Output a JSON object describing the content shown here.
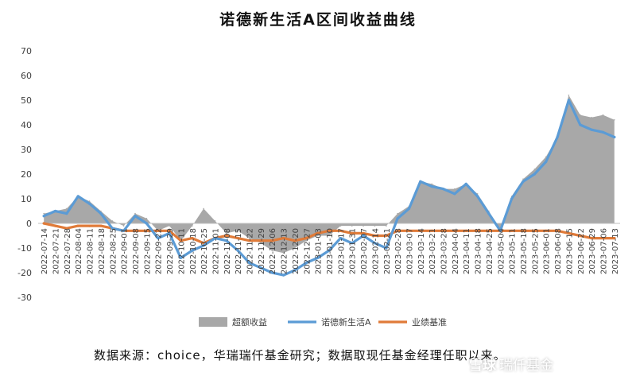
{
  "title": "诺德新生活A区间收益曲线",
  "source_note": "数据来源：choice，华瑞瑞仟基金研究；数据取现任基金经理任职以来。",
  "watermark": {
    "site": "雪球",
    "author": "瑞仟基金"
  },
  "colors": {
    "excess": "#a8a8a8",
    "fund": "#5b9bd5",
    "benchmark": "#e07b39",
    "axis": "#bfbfbf",
    "text": "#404040"
  },
  "chart_data": {
    "type": "area",
    "title": "诺德新生活A区间收益曲线",
    "xlabel": "",
    "ylabel": "",
    "ylim": [
      -30,
      70
    ],
    "yticks": [
      70,
      60,
      50,
      40,
      30,
      20,
      10,
      0,
      -10,
      -20,
      -30
    ],
    "grid": false,
    "legend_position": "bottom",
    "x": [
      "2022-07-14",
      "2022-07-21",
      "2022-07-28",
      "2022-08-04",
      "2022-08-11",
      "2022-08-18",
      "2022-08-25",
      "2022-09-01",
      "2022-09-08",
      "2022-09-15",
      "2022-09-22",
      "2022-09-29",
      "2022-10-13",
      "2022-10-20",
      "2022-10-27",
      "2022-11-03",
      "2022-11-10",
      "2022-11-17",
      "2022-11-24",
      "2022-12-01",
      "2022-12-08",
      "2022-12-15",
      "2022-12-22",
      "2022-12-29",
      "2023-01-05",
      "2023-01-12",
      "2023-01-19",
      "2023-02-02",
      "2023-02-09",
      "2023-02-16",
      "2023-02-23",
      "2023-03-02",
      "2023-03-09",
      "2023-03-16",
      "2023-03-23",
      "2023-03-30",
      "2023-04-06",
      "2023-04-13",
      "2023-04-20",
      "2023-04-27",
      "2023-05-04",
      "2023-05-11",
      "2023-05-18",
      "2023-05-25",
      "2023-06-01",
      "2023-06-08",
      "2023-06-15",
      "2023-06-22",
      "2023-06-29",
      "2023-07-06",
      "2023-07-13"
    ],
    "xticks": [
      "2022-07-14",
      "2022-07-21",
      "2022-07-28",
      "2022-08-04",
      "2022-08-11",
      "2022-08-18",
      "2022-08-25",
      "2022-09-01",
      "2022-09-08",
      "2022-09-15",
      "2022-09-22",
      "2022-09-29",
      "2022-10-11",
      "2022-10-18",
      "2022-10-25",
      "2022-11-01",
      "2022-11-08",
      "2022-11-15",
      "2022-11-22",
      "2022-11-29",
      "2022-12-06",
      "2022-12-13",
      "2022-12-20",
      "2022-12-27",
      "2023-01-03",
      "2023-01-10",
      "2023-01-17",
      "2023-01-31",
      "2023-02-07",
      "2023-02-14",
      "2023-02-21",
      "2023-02-28",
      "2023-03-07",
      "2023-03-14",
      "2023-03-21",
      "2023-03-28",
      "2023-04-04",
      "2023-04-11",
      "2023-04-18",
      "2023-04-25",
      "2023-05-04",
      "2023-05-11",
      "2023-05-18",
      "2023-05-25",
      "2023-06-01",
      "2023-06-08",
      "2023-06-15",
      "2023-06-22",
      "2023-06-29",
      "2023-07-06",
      "2023-07-13"
    ],
    "series": [
      {
        "name": "超额收益",
        "type": "area",
        "color": "#a8a8a8",
        "values": [
          4,
          5,
          6,
          11,
          9,
          5,
          1,
          -1,
          4,
          2,
          -3,
          -1,
          -7,
          -1,
          6,
          1,
          -4,
          -3,
          -6,
          -8,
          -11,
          -12,
          -10,
          -7,
          -5,
          -5,
          -1,
          -1,
          -1,
          -1,
          -1,
          4,
          7,
          17,
          16,
          14,
          14,
          16,
          12,
          5,
          -4,
          11,
          18,
          22,
          27,
          35,
          52,
          44,
          43,
          44,
          42
        ]
      },
      {
        "name": "诺德新生活A",
        "type": "line",
        "color": "#5b9bd5",
        "values": [
          3,
          5,
          4,
          11,
          8,
          4,
          -2,
          -3,
          3,
          0,
          -6,
          -4,
          -14,
          -11,
          -9,
          -6,
          -7,
          -11,
          -16,
          -18,
          -20,
          -21,
          -19,
          -16,
          -14,
          -11,
          -6,
          -8,
          -5,
          -8,
          -10,
          2,
          6,
          17,
          15,
          14,
          12,
          16,
          11,
          4,
          -3,
          10,
          17,
          20,
          25,
          35,
          50,
          40,
          38,
          37,
          35
        ]
      },
      {
        "name": "业绩基准",
        "type": "line",
        "color": "#e07b39",
        "values": [
          0,
          -1,
          -2,
          -1,
          -1,
          -1,
          -2,
          -3,
          -3,
          -3,
          -3,
          -3,
          -7,
          -6,
          -8,
          -6,
          -5,
          -6,
          -7,
          -7,
          -7,
          -6,
          -7,
          -6,
          -4,
          -3,
          -3,
          -4,
          -4,
          -5,
          -5,
          -3,
          -3,
          -3,
          -3,
          -3,
          -3,
          -3,
          -3,
          -3,
          -3,
          -3,
          -3,
          -3,
          -3,
          -3,
          -4,
          -5,
          -6,
          -6,
          -6
        ]
      }
    ]
  }
}
